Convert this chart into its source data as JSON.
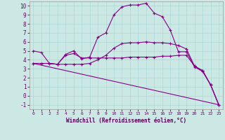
{
  "xlabel": "Windchill (Refroidissement éolien,°C)",
  "background_color": "#cce8e4",
  "grid_color": "#aad8d4",
  "line_color": "#880088",
  "xlim": [
    -0.5,
    23.5
  ],
  "ylim": [
    -1.5,
    10.5
  ],
  "xticks": [
    0,
    1,
    2,
    3,
    4,
    5,
    6,
    7,
    8,
    9,
    10,
    11,
    12,
    13,
    14,
    15,
    16,
    17,
    18,
    19,
    20,
    21,
    22,
    23
  ],
  "yticks": [
    -1,
    0,
    1,
    2,
    3,
    4,
    5,
    6,
    7,
    8,
    9,
    10
  ],
  "series": [
    {
      "x": [
        0,
        1,
        2,
        3,
        4,
        5,
        6,
        7,
        8,
        9,
        10,
        11,
        12,
        13,
        14,
        15,
        16,
        17,
        18,
        19,
        20,
        21,
        22,
        23
      ],
      "y": [
        5.0,
        4.8,
        3.6,
        3.5,
        4.6,
        5.0,
        4.1,
        4.3,
        6.5,
        7.0,
        9.0,
        9.9,
        10.1,
        10.1,
        10.3,
        9.2,
        8.8,
        7.3,
        4.9,
        4.9,
        3.2,
        2.7,
        1.2,
        -1.0
      ],
      "has_marker": true
    },
    {
      "x": [
        0,
        1,
        2,
        3,
        4,
        5,
        6,
        7,
        8,
        9,
        10,
        11,
        12,
        13,
        14,
        15,
        16,
        17,
        18,
        19,
        20,
        21,
        22,
        23
      ],
      "y": [
        3.6,
        3.6,
        3.6,
        3.5,
        4.5,
        4.7,
        4.2,
        4.2,
        4.2,
        4.2,
        4.2,
        4.2,
        4.3,
        4.3,
        4.3,
        4.3,
        4.4,
        4.4,
        4.5,
        4.5,
        3.3,
        2.8,
        1.2,
        -1.0
      ],
      "has_marker": true
    },
    {
      "x": [
        0,
        1,
        2,
        3,
        4,
        5,
        6,
        7,
        8,
        9,
        10,
        11,
        12,
        13,
        14,
        15,
        16,
        17,
        18,
        19,
        20,
        21,
        22,
        23
      ],
      "y": [
        3.6,
        3.6,
        3.6,
        3.5,
        3.5,
        3.5,
        3.5,
        3.6,
        4.0,
        4.5,
        5.3,
        5.8,
        5.9,
        5.9,
        6.0,
        5.9,
        5.9,
        5.8,
        5.6,
        5.2,
        3.3,
        2.8,
        1.2,
        -1.0
      ],
      "has_marker": true
    },
    {
      "x": [
        0,
        23
      ],
      "y": [
        3.6,
        -1.0
      ],
      "has_marker": false
    }
  ]
}
